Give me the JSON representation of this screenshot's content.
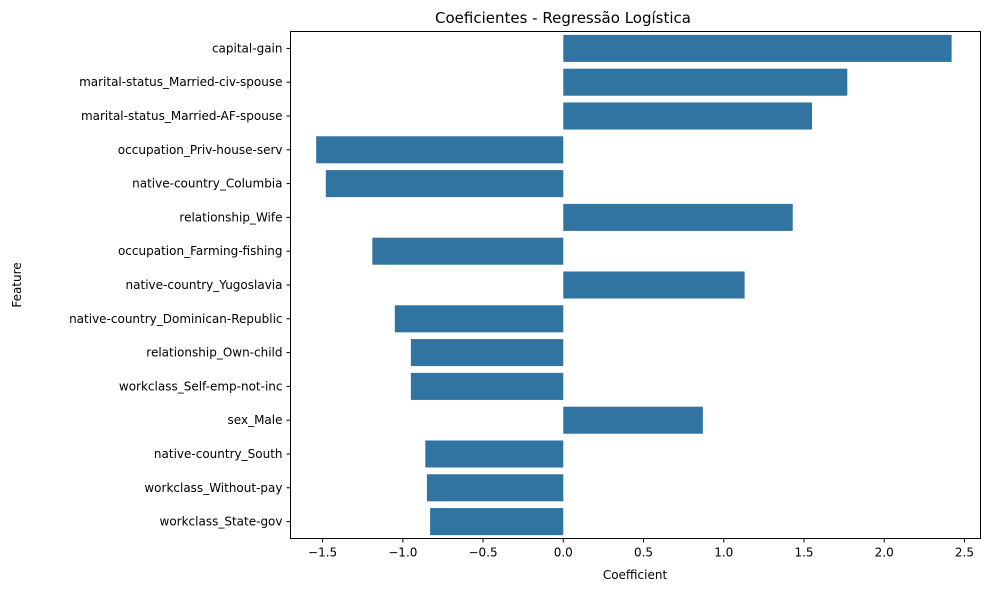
{
  "chart_data": {
    "type": "bar",
    "orientation": "horizontal",
    "title": "Coeficientes - Regressão Logística",
    "xlabel": "Coefficient",
    "ylabel": "Feature",
    "bar_color": "#3274a1",
    "xlim": [
      -1.7,
      2.6
    ],
    "xticks": [
      -1.5,
      -1.0,
      -0.5,
      0.0,
      0.5,
      1.0,
      1.5,
      2.0,
      2.5
    ],
    "xtick_labels": [
      "−1.5",
      "−1.0",
      "−0.5",
      "0.0",
      "0.5",
      "1.0",
      "1.5",
      "2.0",
      "2.5"
    ],
    "grid": false,
    "categories": [
      "capital-gain",
      "marital-status_Married-civ-spouse",
      "marital-status_Married-AF-spouse",
      "occupation_Priv-house-serv",
      "native-country_Columbia",
      "relationship_Wife",
      "occupation_Farming-fishing",
      "native-country_Yugoslavia",
      "native-country_Dominican-Republic",
      "relationship_Own-child",
      "workclass_Self-emp-not-inc",
      "sex_Male",
      "native-country_South",
      "workclass_Without-pay",
      "workclass_State-gov"
    ],
    "values": [
      2.42,
      1.77,
      1.55,
      -1.54,
      -1.48,
      1.43,
      -1.19,
      1.13,
      -1.05,
      -0.95,
      -0.95,
      0.87,
      -0.86,
      -0.85,
      -0.83
    ]
  }
}
